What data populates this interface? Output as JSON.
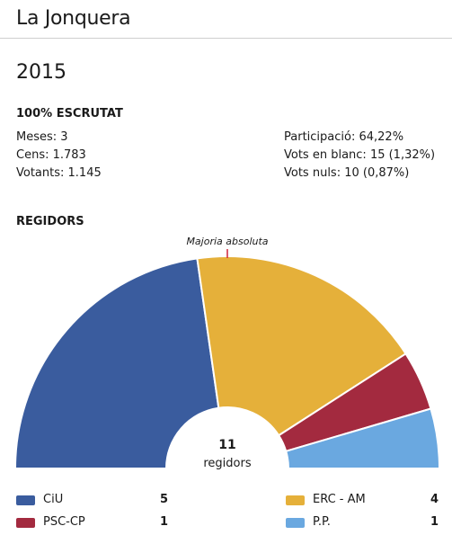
{
  "header": {
    "town": "La Jonquera",
    "year": "2015"
  },
  "scrutiny": {
    "title": "100% ESCRUTAT",
    "meses": "Meses: 3",
    "cens": "Cens: 1.783",
    "votants": "Votants: 1.145",
    "participacio": "Participació: 64,22%",
    "blanc": "Vots en blanc: 15 (1,32%)",
    "nuls": "Vots nuls: 10 (0,87%)"
  },
  "regidors": {
    "title": "REGIDORS",
    "majority_label": "Majoria absoluta",
    "total": "11",
    "total_label": "regidors"
  },
  "chart_data": {
    "type": "pie",
    "subtype": "semicircle-parliament",
    "title": "REGIDORS",
    "categories": [
      "CiU",
      "ERC - AM",
      "PSC-CP",
      "P.P."
    ],
    "values": [
      5,
      4,
      1,
      1
    ],
    "total": 11,
    "annotation": "Majoria absoluta",
    "colors": [
      "#3a5c9e",
      "#e5b03a",
      "#a32a3f",
      "#6aa8e0"
    ]
  },
  "legend": [
    {
      "name": "CiU",
      "value": "5",
      "color": "#3a5c9e"
    },
    {
      "name": "ERC - AM",
      "value": "4",
      "color": "#e5b03a"
    },
    {
      "name": "PSC-CP",
      "value": "1",
      "color": "#a32a3f"
    },
    {
      "name": "P.P.",
      "value": "1",
      "color": "#6aa8e0"
    }
  ]
}
